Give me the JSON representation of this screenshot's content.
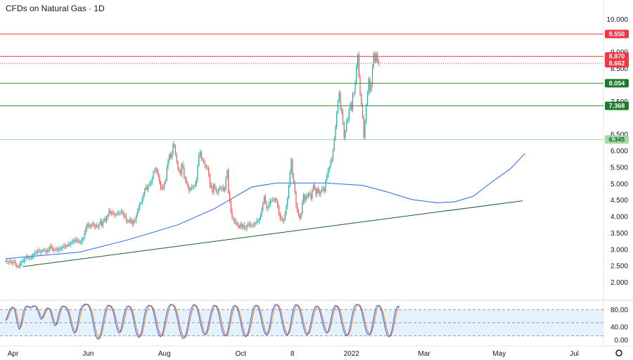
{
  "chart_data": {
    "type": "candlestick",
    "title": "CFDs on Natural Gas · 1D",
    "y_axis": {
      "min": 1.5,
      "max": 10.2,
      "ticks": [
        10.0,
        6.5,
        6.0,
        5.5,
        5.0,
        4.5,
        4.0,
        3.5,
        3.0,
        2.5,
        2.0
      ],
      "tick_labels": [
        "10.000",
        "6.500",
        "6.000",
        "5.500",
        "5.000",
        "4.500",
        "4.000",
        "3.500",
        "3.000",
        "2.500",
        "2.000"
      ]
    },
    "oscillator_axis": {
      "min": 0,
      "max": 100,
      "ticks": [
        80,
        40,
        0
      ],
      "tick_labels": [
        "80.00",
        "40.00",
        "0.00"
      ],
      "band": [
        20,
        80
      ]
    },
    "x_axis": {
      "labels": [
        {
          "text": "Apr",
          "day": 6
        },
        {
          "text": "Jun",
          "day": 67
        },
        {
          "text": "Aug",
          "day": 129
        },
        {
          "text": "Oct",
          "day": 191
        },
        {
          "text": "8",
          "day": 233
        },
        {
          "text": "2022",
          "day": 281
        },
        {
          "text": "Mar",
          "day": 340
        },
        {
          "text": "May",
          "day": 401
        },
        {
          "text": "Jul",
          "day": 462
        }
      ]
    },
    "horizontal_levels": [
      {
        "value": 9.55,
        "label": "9.550",
        "color": "#f23645",
        "style": "solid"
      },
      {
        "value": 8.87,
        "label": "8.870",
        "color": "#f23645",
        "style": "solid"
      },
      {
        "value": 8.662,
        "label": "8.662",
        "color": "#f23645",
        "style": "dotted"
      },
      {
        "value": 8.054,
        "label": "8.054",
        "color": "#388e3c",
        "style": "solid"
      },
      {
        "value": 7.368,
        "label": "7.368",
        "color": "#388e3c",
        "style": "solid"
      },
      {
        "value": 6.345,
        "label": "6.345",
        "color": "#a5d6a7",
        "style": "solid"
      }
    ],
    "partially_hidden_ticks": [
      "9.000",
      "8.500",
      "7.500"
    ],
    "trendline": {
      "color": "#1b5e20",
      "from": {
        "day": 14,
        "value": 2.48
      },
      "to": {
        "day": 420,
        "value": 4.48
      }
    },
    "moving_average": {
      "color": "#2962ff",
      "points": [
        [
          0,
          2.72
        ],
        [
          60,
          2.92
        ],
        [
          100,
          3.3
        ],
        [
          140,
          3.75
        ],
        [
          170,
          4.25
        ],
        [
          200,
          4.9
        ],
        [
          220,
          5.02
        ],
        [
          260,
          5.02
        ],
        [
          290,
          4.95
        ],
        [
          310,
          4.75
        ],
        [
          330,
          4.52
        ],
        [
          350,
          4.42
        ],
        [
          365,
          4.45
        ],
        [
          380,
          4.62
        ],
        [
          395,
          5.05
        ],
        [
          410,
          5.45
        ],
        [
          422,
          5.92
        ]
      ]
    },
    "colors": {
      "up": "#26a69a",
      "down": "#ef5350",
      "osc_k": "#2962ff",
      "osc_d": "#ff6d00",
      "band_fill": "#e3f2fd"
    },
    "series": [
      {
        "name": "price",
        "days_step": 1,
        "closes": [
          2.65,
          2.63,
          2.62,
          2.64,
          2.62,
          2.6,
          2.62,
          2.61,
          2.53,
          2.5,
          2.47,
          2.5,
          2.6,
          2.64,
          2.64,
          2.69,
          2.73,
          2.76,
          2.76,
          2.73,
          2.73,
          2.78,
          2.82,
          2.88,
          2.9,
          2.91,
          2.97,
          2.94,
          2.91,
          2.94,
          2.98,
          2.98,
          2.97,
          2.92,
          2.96,
          3.01,
          3.09,
          3.05,
          3.01,
          2.98,
          2.99,
          2.99,
          3.03,
          2.99,
          3.02,
          3.04,
          3.08,
          3.07,
          3.12,
          3.09,
          3.13,
          3.17,
          3.16,
          3.21,
          3.22,
          3.27,
          3.29,
          3.24,
          3.29,
          3.27,
          3.21,
          3.21,
          3.33,
          3.33,
          3.49,
          3.64,
          3.76,
          3.69,
          3.73,
          3.7,
          3.78,
          3.76,
          3.7,
          3.74,
          3.7,
          3.69,
          3.78,
          3.86,
          3.73,
          3.84,
          3.94,
          3.87,
          3.98,
          4.04,
          4.18,
          4.12,
          4.11,
          4.09,
          4.07,
          4.04,
          4.07,
          4.12,
          4.12,
          4.12,
          4.15,
          4.11,
          4.0,
          4.02,
          3.86,
          3.88,
          3.84,
          3.91,
          3.86,
          3.78,
          3.87,
          3.87,
          4.01,
          4.15,
          4.27,
          4.39,
          4.42,
          4.55,
          4.69,
          4.84,
          4.9,
          4.83,
          4.96,
          4.98,
          5.04,
          5.16,
          5.37,
          5.39,
          5.45,
          5.37,
          5.23,
          5.05,
          4.89,
          4.85,
          4.9,
          5.02,
          5.12,
          5.5,
          5.71,
          5.88,
          5.79,
          5.93,
          6.2,
          6.12,
          5.9,
          5.68,
          5.43,
          5.38,
          5.3,
          5.6,
          5.48,
          5.2,
          5.12,
          5.01,
          4.92,
          4.79,
          4.85,
          4.9,
          4.91,
          4.92,
          4.97,
          5.12,
          5.55,
          5.85,
          5.96,
          5.76,
          5.71,
          5.64,
          5.55,
          5.49,
          5.47,
          5.27,
          4.95,
          4.88,
          4.74,
          4.98,
          4.85,
          4.76,
          4.74,
          4.84,
          4.87,
          4.85,
          4.89,
          4.79,
          4.85,
          5.18,
          5.4,
          4.74,
          4.48,
          4.16,
          3.97,
          3.92,
          3.86,
          3.77,
          3.79,
          3.71,
          3.67,
          3.77,
          3.69,
          3.74,
          3.65,
          3.64,
          3.74,
          3.73,
          3.79,
          3.73,
          3.71,
          3.73,
          3.8,
          3.8,
          3.87,
          3.87,
          3.92,
          4.02,
          4.21,
          4.4,
          4.62,
          4.43,
          4.26,
          4.29,
          4.37,
          4.5,
          4.5,
          4.49,
          4.5,
          4.54,
          4.45,
          4.3,
          4.1,
          3.95,
          3.93,
          3.87,
          3.9,
          4.08,
          4.3,
          4.56,
          4.94,
          5.35,
          5.74,
          5.25,
          5.04,
          4.74,
          4.33,
          4.15,
          4.04,
          3.95,
          4.09,
          4.44,
          4.66,
          4.48,
          4.59,
          4.64,
          4.7,
          4.65,
          4.55,
          4.8,
          4.96,
          4.85,
          4.68,
          4.84,
          4.76,
          4.68,
          4.76,
          4.83,
          4.86,
          4.76,
          5.1,
          5.25,
          5.42,
          5.5,
          5.67,
          5.76,
          6.02,
          6.35,
          6.73,
          7.16,
          7.52,
          7.76,
          7.3,
          7.19,
          6.83,
          6.4,
          6.6,
          6.89,
          6.95,
          7.26,
          7.44,
          7.24,
          7.73,
          7.75,
          8.06,
          8.57,
          8.92,
          8.25,
          7.72,
          7.42,
          7.01,
          6.4,
          6.9,
          7.4,
          7.75,
          8.19,
          7.82,
          8.0,
          8.57,
          8.96,
          8.7,
          8.95,
          8.75,
          8.66
        ]
      }
    ],
    "oscillator": {
      "name": "stochastic",
      "k": [
        55,
        62,
        70,
        78,
        83,
        85,
        86,
        82,
        70,
        55,
        42,
        35,
        40,
        55,
        70,
        80,
        86,
        88,
        88,
        85,
        84,
        86,
        88,
        89,
        88,
        85,
        78,
        70,
        62,
        58,
        62,
        70,
        78,
        82,
        84,
        83,
        79,
        70,
        58,
        48,
        43,
        45,
        55,
        68,
        78,
        85,
        88,
        88,
        87,
        84,
        80,
        72,
        60,
        48,
        38,
        30,
        26,
        30,
        42,
        58,
        72,
        82,
        88,
        90,
        92,
        93,
        92,
        90,
        85,
        78,
        65,
        50,
        35,
        22,
        15,
        12,
        15,
        22,
        35,
        50,
        65,
        78,
        86,
        90,
        90,
        88,
        84,
        78,
        68,
        55,
        42,
        32,
        26,
        28,
        38,
        52,
        66,
        78,
        85,
        88,
        88,
        86,
        80,
        70,
        55,
        40,
        28,
        20,
        16,
        18,
        25,
        38,
        55,
        70,
        82,
        88,
        90,
        90,
        88,
        84,
        76,
        64,
        50,
        36,
        26,
        20,
        18,
        22,
        32,
        46,
        60,
        74,
        84,
        90,
        92,
        92,
        90,
        86,
        78,
        66,
        52,
        38,
        26,
        18,
        14,
        15,
        20,
        30,
        44,
        60,
        74,
        84,
        90,
        92,
        90,
        86,
        78,
        66,
        52,
        40,
        30,
        24,
        22,
        26,
        36,
        50,
        64,
        76,
        85,
        90,
        90,
        88,
        82,
        72,
        58,
        44,
        32,
        24,
        20,
        20,
        26,
        38,
        54,
        70,
        82,
        88,
        90,
        88,
        84,
        76,
        64,
        50,
        36,
        26,
        20,
        18,
        20,
        28,
        40,
        56,
        70,
        82,
        88,
        90,
        90,
        86,
        78,
        66,
        52,
        40,
        30,
        24,
        22,
        26,
        36,
        52,
        68,
        80,
        88,
        92,
        92,
        90,
        84,
        74,
        60,
        46,
        34,
        26,
        22,
        22,
        28,
        40,
        56,
        72,
        84,
        90,
        92,
        90,
        86,
        78,
        66,
        52,
        40,
        30,
        24,
        22,
        26,
        36,
        50,
        64,
        76,
        84,
        88,
        88,
        85,
        78,
        68,
        56,
        44,
        34,
        28,
        26,
        30,
        40,
        54,
        68,
        80,
        88,
        90,
        88,
        84,
        76,
        64,
        50,
        38,
        28,
        22,
        20,
        22,
        30,
        44,
        60,
        74,
        84,
        90,
        92,
        92,
        90,
        86,
        78,
        66,
        52,
        40,
        30,
        24,
        22,
        24,
        32,
        46,
        62,
        76,
        86,
        90,
        90,
        86,
        80,
        70,
        56,
        42,
        30,
        22,
        18,
        18,
        24,
        36,
        52,
        68,
        80,
        86,
        88,
        86
      ]
    }
  }
}
